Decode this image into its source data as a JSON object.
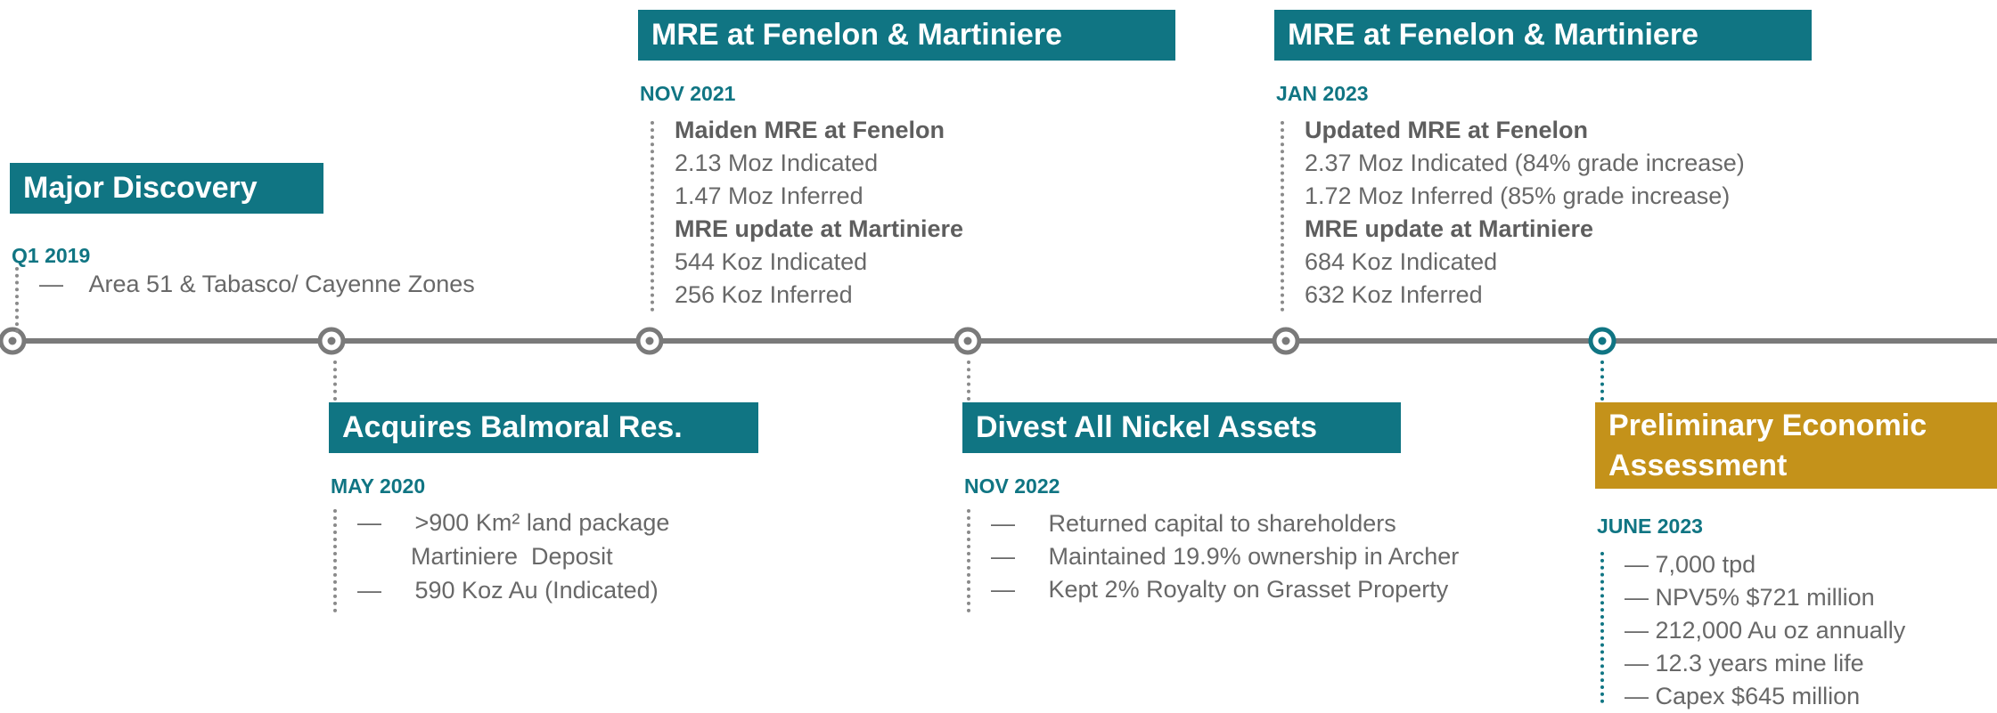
{
  "events": [
    {
      "title": "Major Discovery",
      "date": "Q1 2019",
      "sections": [
        {
          "lines": [
            "—    Area 51 & Tabasco/ Cayenne Zones"
          ]
        }
      ]
    },
    {
      "title": "Acquires  Balmoral  Res.",
      "date": "MAY 2020",
      "sections": [
        {
          "lines": [
            "—     >900 Km² land package",
            "        Martiniere  Deposit",
            "—     590 Koz Au (Indicated)"
          ]
        }
      ]
    },
    {
      "title": "MRE at Fenelon & Martiniere",
      "date": "NOV 2021",
      "sections": [
        {
          "heading": "Maiden MRE at Fenelon",
          "lines": [
            "2.13 Moz Indicated",
            "1.47 Moz Inferred"
          ]
        },
        {
          "heading": "MRE update at Martiniere",
          "lines": [
            "544 Koz Indicated",
            "256 Koz Inferred"
          ]
        }
      ]
    },
    {
      "title": "Divest All Nickel Assets",
      "date": "NOV 2022",
      "sections": [
        {
          "lines": [
            "—     Returned capital to shareholders",
            "—     Maintained 19.9% ownership in Archer",
            "—     Kept 2% Royalty on Grasset Property"
          ]
        }
      ]
    },
    {
      "title": "MRE at Fenelon & Martiniere",
      "date": "JAN 2023",
      "sections": [
        {
          "heading": "Updated MRE at Fenelon",
          "lines": [
            "2.37 Moz Indicated (84% grade increase)",
            "1.72 Moz Inferred (85% grade increase)"
          ]
        },
        {
          "heading": "MRE update at Martiniere",
          "lines": [
            "684 Koz Indicated",
            "632 Koz Inferred"
          ]
        }
      ]
    },
    {
      "title": "Preliminary Economic Assessment",
      "date": "JUNE 2023",
      "sections": [
        {
          "lines": [
            "— 7,000 tpd",
            "— NPV5% $721 million",
            "— 212,000 Au oz annually",
            "— 12.3 years mine life",
            "— Capex $645 million"
          ]
        }
      ]
    }
  ]
}
